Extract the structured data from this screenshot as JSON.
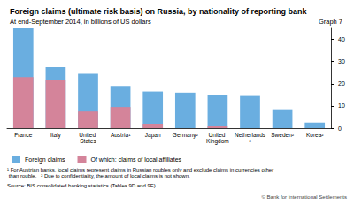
{
  "chart_data": {
    "type": "bar",
    "title": "Foreign claims (ultimate risk basis) on Russia, by nationality of reporting bank",
    "subtitle": "At end-September 2014, in billions of US dollars",
    "graph_label": "Graph 7",
    "categories": [
      "France",
      "Italy",
      "United States",
      "Austria¹",
      "Japan",
      "Germany²",
      "United Kingdom",
      "Netherlands²",
      "Sweden²",
      "Korea²"
    ],
    "series": [
      {
        "name": "Foreign claims",
        "color": "#6aaee0",
        "values": [
          45,
          27.5,
          24.5,
          19,
          16.5,
          16,
          15,
          14.5,
          8.5,
          2.5
        ]
      },
      {
        "name": "Of which: claims of local affiliates",
        "color": "#d4849a",
        "values": [
          23,
          21.5,
          7.5,
          9.5,
          2,
          null,
          1,
          null,
          null,
          null
        ]
      }
    ],
    "ylim": [
      0,
      45
    ],
    "yticks": [
      0,
      10,
      20,
      30,
      40
    ],
    "grid": false,
    "legend": "bottom",
    "footnotes": "¹ For Austrian banks, local claims represent claims in Russian roubles only and exclude claims in currencies other than rouble.   ² Due to confidentiality, the amount of local claims is not shown.",
    "source": "Source: BIS consolidated banking statistics (Tables 9D and 9E).",
    "copyright": "© Bank for International Settlements"
  }
}
